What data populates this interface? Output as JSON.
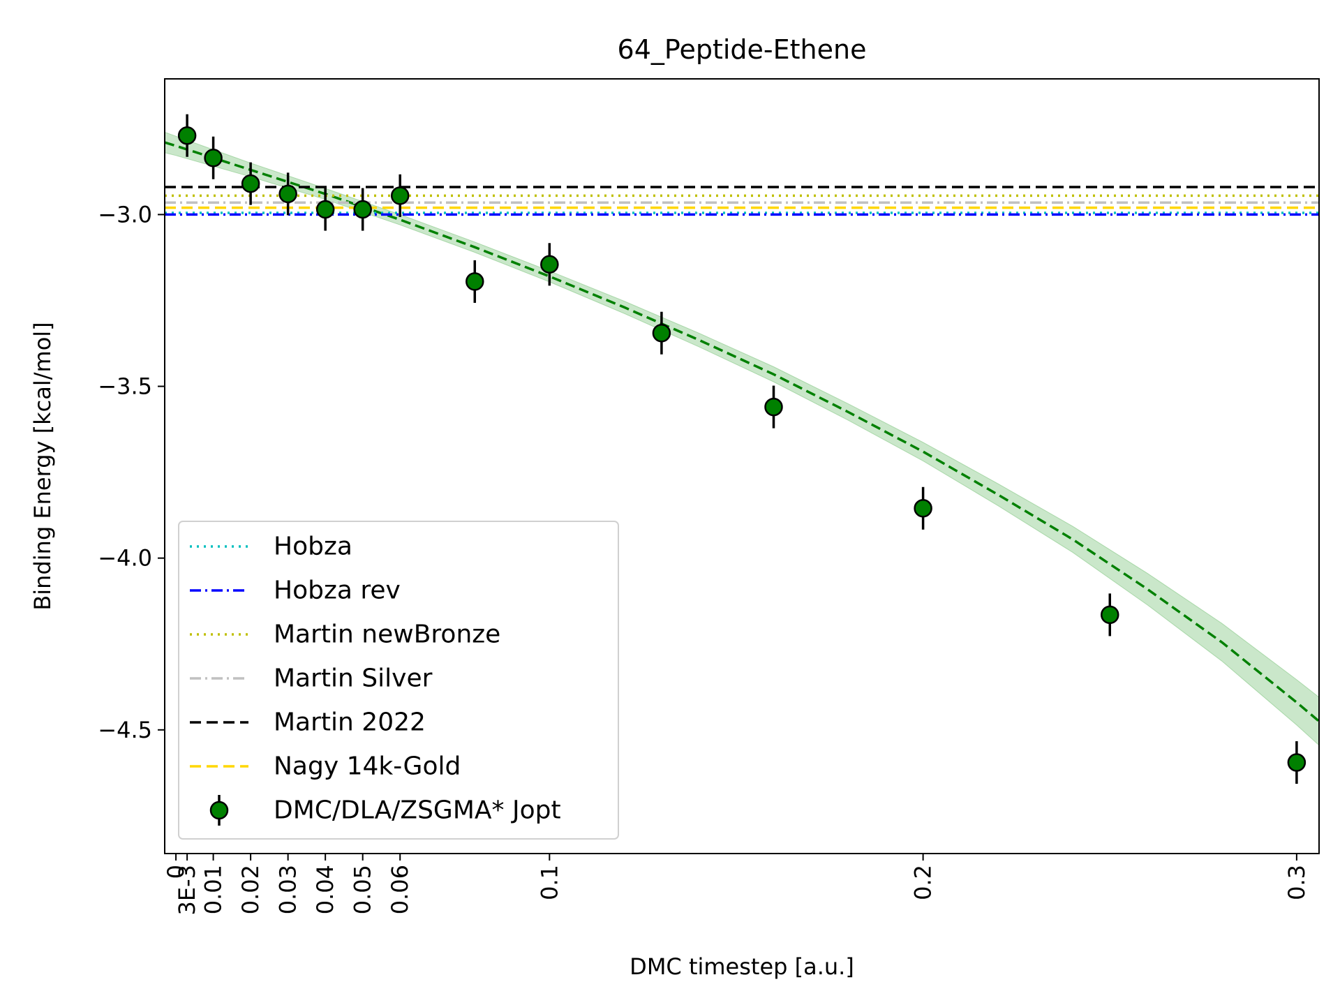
{
  "chart_data": {
    "type": "scatter",
    "title": "64_Peptide-Ethene",
    "xlabel": "DMC timestep [a.u.]",
    "ylabel": "Binding Energy [kcal/mol]",
    "xlim": [
      -0.003,
      0.306
    ],
    "ylim": [
      -4.86,
      -2.605
    ],
    "x_ticks": [
      {
        "value": 0,
        "label": "0"
      },
      {
        "value": 0.003,
        "label": "3E-3"
      },
      {
        "value": 0.01,
        "label": "0.01"
      },
      {
        "value": 0.02,
        "label": "0.02"
      },
      {
        "value": 0.03,
        "label": "0.03"
      },
      {
        "value": 0.04,
        "label": "0.04"
      },
      {
        "value": 0.05,
        "label": "0.05"
      },
      {
        "value": 0.06,
        "label": "0.06"
      },
      {
        "value": 0.1,
        "label": "0.1"
      },
      {
        "value": 0.2,
        "label": "0.2"
      },
      {
        "value": 0.3,
        "label": "0.3"
      }
    ],
    "y_ticks": [
      {
        "value": -3.0,
        "label": "−3.0"
      },
      {
        "value": -3.5,
        "label": "−3.5"
      },
      {
        "value": -4.0,
        "label": "−4.0"
      },
      {
        "value": -4.5,
        "label": "−4.5"
      }
    ],
    "grid": false,
    "legend_position": "lower-left",
    "reference_lines": [
      {
        "name": "Hobza",
        "value": -2.995,
        "color": "#00bfbf",
        "style": "dotted"
      },
      {
        "name": "Hobza rev",
        "value": -3.0,
        "color": "#0000ff",
        "style": "dashdot"
      },
      {
        "name": "Martin newBronze",
        "value": -2.945,
        "color": "#bfbf00",
        "style": "dotted"
      },
      {
        "name": "Martin Silver",
        "value": -2.965,
        "color": "#c0c0c0",
        "style": "dashdot"
      },
      {
        "name": "Martin 2022",
        "value": -2.92,
        "color": "#000000",
        "style": "dashed"
      },
      {
        "name": "Nagy 14k-Gold",
        "value": -2.98,
        "color": "#ffd700",
        "style": "dashed"
      }
    ],
    "series": [
      {
        "name": "DMC/DLA/ZSGMA* Jopt",
        "color": "#008000",
        "x": [
          0.003,
          0.01,
          0.02,
          0.03,
          0.04,
          0.05,
          0.06,
          0.08,
          0.1,
          0.13,
          0.16,
          0.2,
          0.25,
          0.3
        ],
        "y": [
          -2.77,
          -2.835,
          -2.91,
          -2.94,
          -2.985,
          -2.985,
          -2.945,
          -3.195,
          -3.145,
          -3.345,
          -3.56,
          -3.855,
          -4.165,
          -4.595
        ],
        "yerr": [
          0.062,
          0.062,
          0.062,
          0.062,
          0.062,
          0.062,
          0.062,
          0.062,
          0.062,
          0.062,
          0.062,
          0.062,
          0.062,
          0.062
        ]
      }
    ],
    "fit": {
      "color": "#008000",
      "band_color": "#2ca02c",
      "style": "dashed",
      "x": [
        -0.003,
        0.0,
        0.02,
        0.04,
        0.06,
        0.08,
        0.1,
        0.12,
        0.14,
        0.16,
        0.18,
        0.2,
        0.22,
        0.24,
        0.26,
        0.28,
        0.3,
        0.306
      ],
      "y": [
        -2.79,
        -2.8,
        -2.87,
        -2.94,
        -3.015,
        -3.095,
        -3.18,
        -3.27,
        -3.365,
        -3.465,
        -3.575,
        -3.69,
        -3.815,
        -3.945,
        -4.09,
        -4.245,
        -4.42,
        -4.475
      ],
      "band_halfwidth": [
        0.03,
        0.028,
        0.02,
        0.016,
        0.015,
        0.015,
        0.016,
        0.018,
        0.02,
        0.022,
        0.024,
        0.027,
        0.032,
        0.038,
        0.046,
        0.055,
        0.066,
        0.07
      ]
    }
  }
}
